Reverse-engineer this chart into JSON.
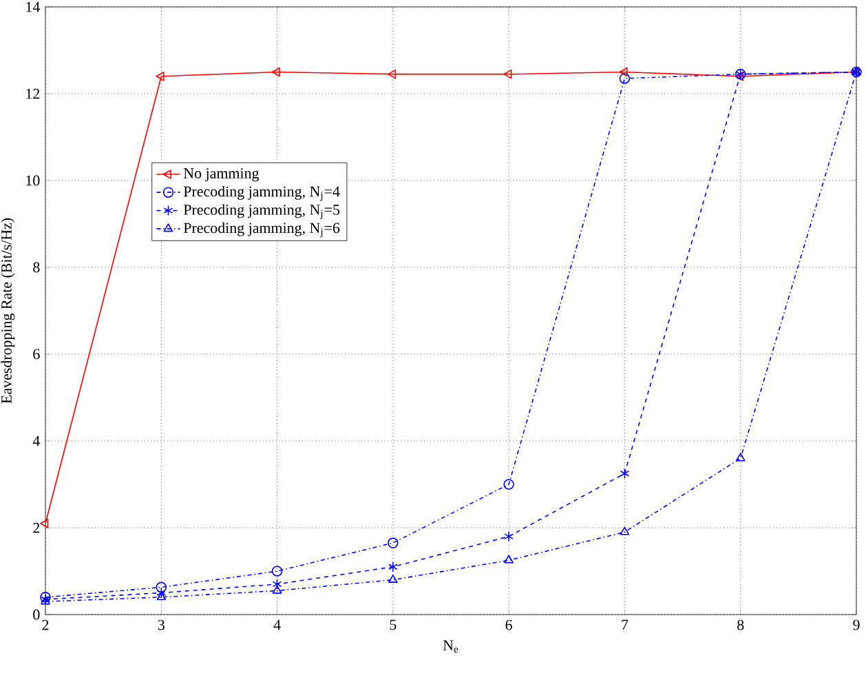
{
  "chart_data": {
    "type": "line",
    "xlabel": "N$_{e}$",
    "ylabel": "Eavesdropping Rate (Bit/s/Hz)",
    "x": [
      2,
      3,
      4,
      5,
      6,
      7,
      8,
      9
    ],
    "series": [
      {
        "name": "No jamming",
        "color": "#ff0000",
        "marker": "triangle-left",
        "line_style": "solid",
        "values": [
          2.1,
          12.4,
          12.5,
          12.45,
          12.45,
          12.5,
          12.4,
          12.5
        ]
      },
      {
        "name": "Precoding jamming, N$_{j}$=4",
        "color": "#0000ff",
        "marker": "circle",
        "line_style": "dashdotted",
        "values": [
          0.4,
          0.63,
          1.0,
          1.65,
          3.0,
          12.35,
          12.45,
          12.5
        ]
      },
      {
        "name": "Precoding jamming, N$_{j}$=5",
        "color": "#0000ff",
        "marker": "cross",
        "line_style": "dashed",
        "values": [
          0.35,
          0.5,
          0.7,
          1.1,
          1.8,
          3.25,
          12.45,
          12.5
        ]
      },
      {
        "name": "Precoding jamming, N$_{j}$=6",
        "color": "#0000ff",
        "marker": "triangle",
        "line_style": "dashdotted",
        "values": [
          0.3,
          0.4,
          0.55,
          0.8,
          1.25,
          1.9,
          3.6,
          12.5
        ]
      }
    ],
    "xlim": [
      2,
      9
    ],
    "ylim": [
      0,
      14
    ],
    "xticks": [
      2,
      3,
      4,
      5,
      6,
      7,
      8,
      9
    ],
    "yticks": [
      0,
      2,
      4,
      6,
      8,
      10,
      12,
      14
    ],
    "grid": true,
    "legend": "left"
  }
}
